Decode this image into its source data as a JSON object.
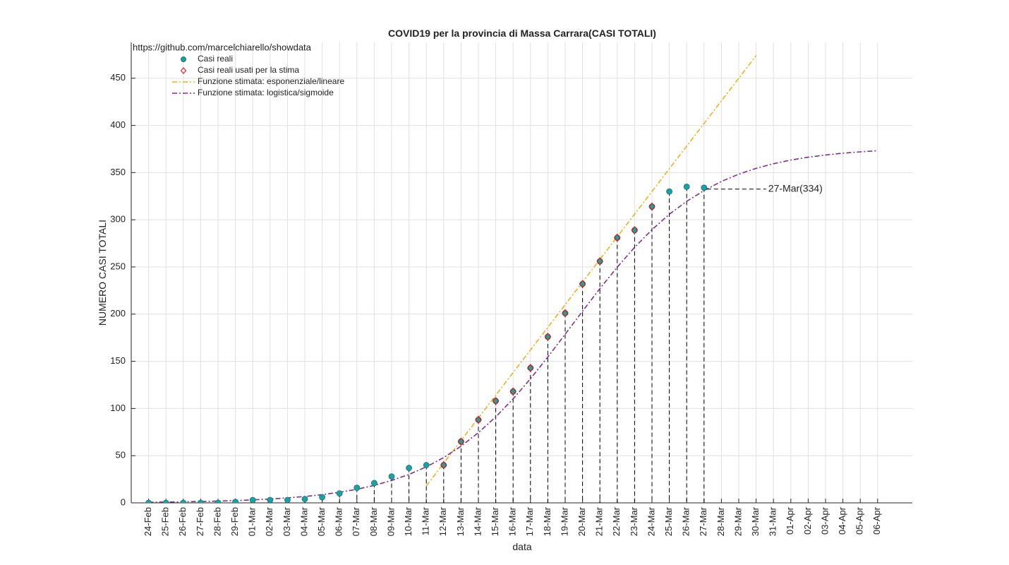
{
  "chart_data": {
    "type": "line",
    "title": "COVID19 per la provincia di Massa Carrara(CASI TOTALI)",
    "xlabel": "data",
    "ylabel": "NUMERO CASI TOTALI",
    "source": "https://github.com/marcelchiarello/showdata",
    "annotation": "27-Mar(334)",
    "categories": [
      "24-Feb",
      "25-Feb",
      "26-Feb",
      "27-Feb",
      "28-Feb",
      "29-Feb",
      "01-Mar",
      "02-Mar",
      "03-Mar",
      "04-Mar",
      "05-Mar",
      "06-Mar",
      "07-Mar",
      "08-Mar",
      "09-Mar",
      "10-Mar",
      "11-Mar",
      "12-Mar",
      "13-Mar",
      "14-Mar",
      "15-Mar",
      "16-Mar",
      "17-Mar",
      "18-Mar",
      "19-Mar",
      "20-Mar",
      "21-Mar",
      "22-Mar",
      "23-Mar",
      "24-Mar",
      "25-Mar",
      "26-Mar",
      "27-Mar",
      "28-Mar",
      "29-Mar",
      "30-Mar",
      "31-Mar",
      "01-Apr",
      "02-Apr",
      "03-Apr",
      "04-Apr",
      "05-Apr",
      "06-Apr"
    ],
    "ylim": [
      0,
      488
    ],
    "yticks": [
      0,
      50,
      100,
      150,
      200,
      250,
      300,
      350,
      400,
      450
    ],
    "grid": true,
    "legend": "northwest",
    "series": [
      {
        "name": "Casi reali",
        "color": "#17a3a3",
        "marker": "circle",
        "values": [
          0,
          0,
          0,
          0,
          0,
          1,
          3,
          3,
          3,
          4,
          6,
          10,
          16,
          21,
          28,
          37,
          40,
          40,
          65,
          88,
          108,
          118,
          143,
          176,
          201,
          232,
          256,
          281,
          289,
          314,
          330,
          335,
          334,
          null,
          null,
          null,
          null,
          null,
          null,
          null,
          null,
          null,
          null
        ]
      },
      {
        "name": "Casi reali usati per la stima",
        "color": "#ff0000",
        "marker": "diamond",
        "values": [
          null,
          null,
          null,
          null,
          null,
          null,
          null,
          null,
          null,
          null,
          null,
          null,
          null,
          null,
          null,
          null,
          null,
          40,
          65,
          88,
          108,
          118,
          143,
          176,
          201,
          232,
          256,
          281,
          289,
          314,
          null,
          null,
          null,
          null,
          null,
          null,
          null,
          null,
          null,
          null,
          null,
          null,
          null
        ]
      },
      {
        "name": "Funzione stimata: esponenziale/lineare",
        "color": "#edb120",
        "marker": "dashdot",
        "values": [
          null,
          null,
          null,
          null,
          null,
          null,
          null,
          null,
          null,
          null,
          null,
          null,
          null,
          null,
          null,
          null,
          18,
          42,
          66,
          90,
          114,
          138,
          162,
          186,
          210,
          234,
          258,
          282,
          306,
          330,
          354,
          378,
          402,
          426,
          450,
          474,
          null,
          null,
          null,
          null,
          null,
          null,
          null
        ]
      },
      {
        "name": "Funzione stimata: logistica/sigmoide",
        "color": "#7e2f8e",
        "marker": "dashdot",
        "values": [
          0.66,
          0.86,
          1.11,
          1.44,
          1.87,
          2.42,
          3.13,
          4.05,
          5.23,
          6.76,
          8.71,
          11.2,
          14.4,
          18.5,
          23.7,
          30.1,
          38.2,
          48.0,
          60.0,
          74.4,
          91.1,
          110.2,
          131.5,
          154.6,
          178.7,
          203.1,
          227.1,
          249.8,
          270.8,
          289.5,
          305.8,
          319.5,
          331.0,
          340.6,
          348.3,
          354.5,
          359.4,
          363.3,
          366.3,
          368.7,
          370.6,
          372.0,
          373.2
        ]
      }
    ]
  }
}
